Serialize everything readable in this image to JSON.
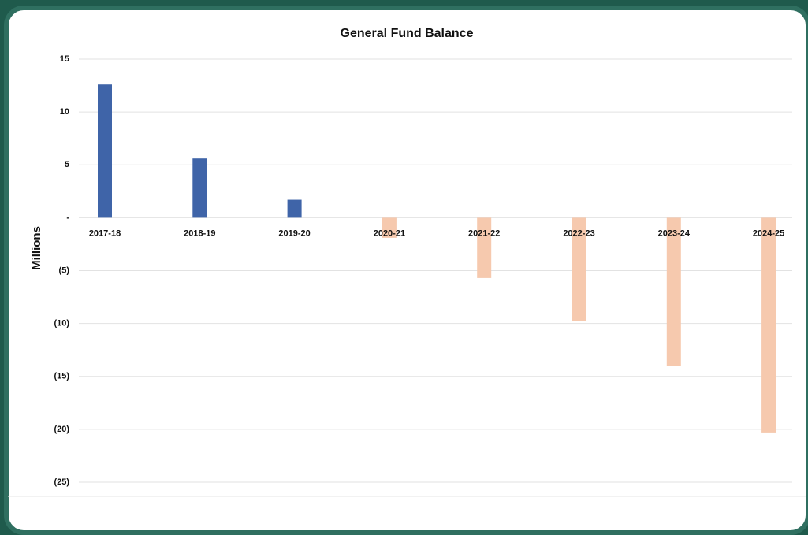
{
  "chart_data": {
    "type": "bar",
    "title": "General Fund Balance",
    "y_label": "Millions",
    "categories": [
      "2017-18",
      "2018-19",
      "2019-20",
      "2020-21",
      "2021-22",
      "2022-23",
      "2023-24",
      "2024-25"
    ],
    "values": [
      12.6,
      5.6,
      1.7,
      -1.9,
      -5.7,
      -9.8,
      -14.0,
      -20.3
    ],
    "color_positive": "#3f64a8",
    "color_negative": "#f6c9ae",
    "ylim": [
      -25,
      15
    ],
    "yticks": [
      15,
      10,
      5,
      {
        "value": 0,
        "label": "-"
      },
      {
        "value": -5,
        "label": "(5)"
      },
      {
        "value": -10,
        "label": "(10)"
      },
      {
        "value": -15,
        "label": "(15)"
      },
      {
        "value": -20,
        "label": "(20)"
      },
      {
        "value": -25,
        "label": "(25)"
      }
    ],
    "grid": true
  }
}
